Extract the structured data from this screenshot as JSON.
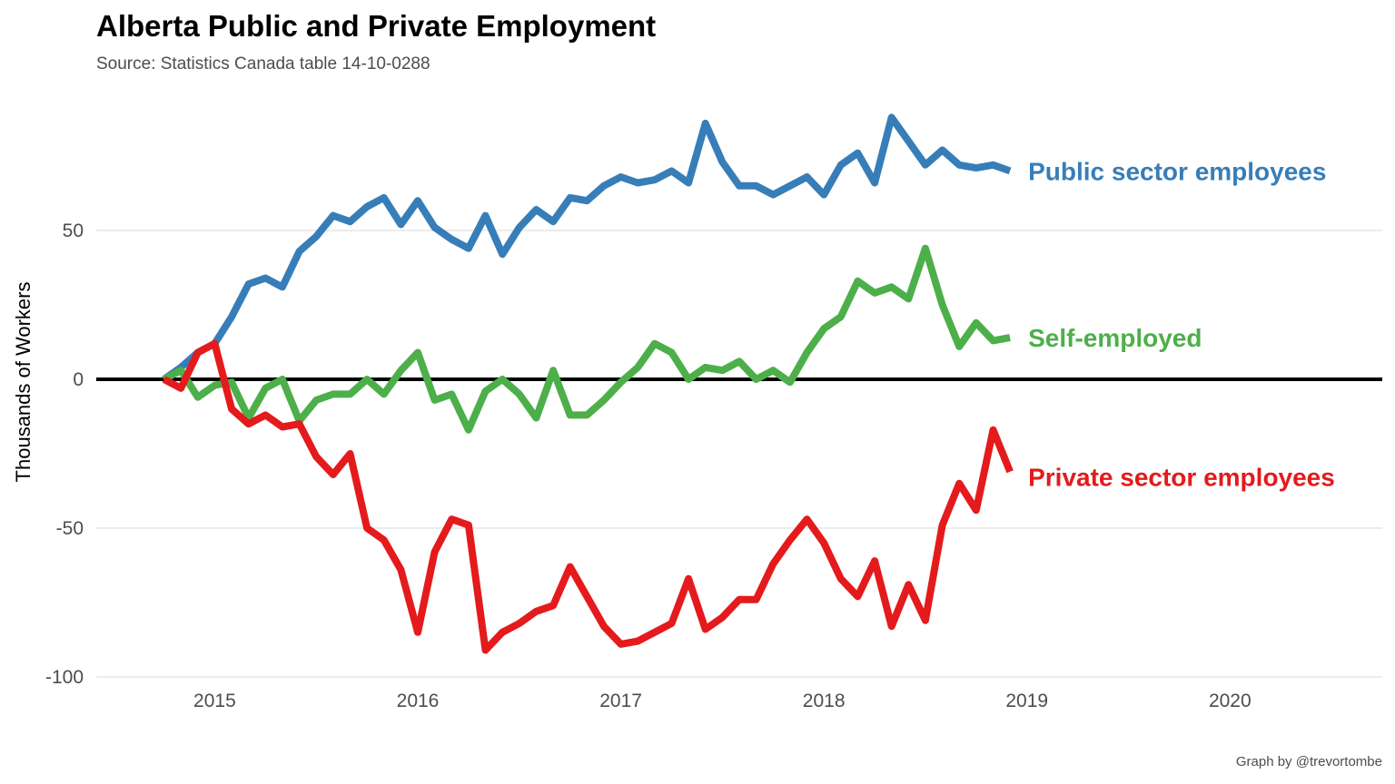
{
  "chart_data": {
    "type": "line",
    "title": "Alberta Public and Private Employment",
    "subtitle": "Source: Statistics Canada table 14-10-0288",
    "caption": "Graph by @trevortombe",
    "xlabel": "",
    "ylabel": "Thousands of Workers",
    "xlim": [
      "2014-06",
      "2020-10"
    ],
    "ylim": [
      -100,
      90
    ],
    "x_ticks": [
      "2015",
      "2016",
      "2017",
      "2018",
      "2019",
      "2020"
    ],
    "y_ticks": [
      50,
      0,
      -50,
      -100
    ],
    "y_tick_labels": [
      "50",
      "0",
      "-50",
      "-100"
    ],
    "grid": true,
    "legend": "direct labels at line ends",
    "x": [
      "2014-10",
      "2014-11",
      "2014-12",
      "2015-01",
      "2015-02",
      "2015-03",
      "2015-04",
      "2015-05",
      "2015-06",
      "2015-07",
      "2015-08",
      "2015-09",
      "2015-10",
      "2015-11",
      "2015-12",
      "2016-01",
      "2016-02",
      "2016-03",
      "2016-04",
      "2016-05",
      "2016-06",
      "2016-07",
      "2016-08",
      "2016-09",
      "2016-10",
      "2016-11",
      "2016-12",
      "2017-01",
      "2017-02",
      "2017-03",
      "2017-04",
      "2017-05",
      "2017-06",
      "2017-07",
      "2017-08",
      "2017-09",
      "2017-10",
      "2017-11",
      "2017-12",
      "2018-01",
      "2018-02",
      "2018-03",
      "2018-04",
      "2018-05",
      "2018-06",
      "2018-07",
      "2018-08",
      "2018-09",
      "2018-10",
      "2018-11",
      "2018-12"
    ],
    "series": [
      {
        "name": "Public sector employees",
        "color": "#377eb8",
        "values": [
          0,
          4,
          9,
          12,
          21,
          32,
          34,
          31,
          43,
          48,
          55,
          53,
          58,
          61,
          52,
          60,
          51,
          47,
          44,
          55,
          42,
          51,
          57,
          53,
          61,
          60,
          65,
          68,
          66,
          67,
          70,
          66,
          86,
          73,
          65,
          65,
          62,
          65,
          68,
          62,
          72,
          76,
          66,
          88,
          80,
          72,
          77,
          72,
          71,
          72,
          70
        ]
      },
      {
        "name": "Self-employed",
        "color": "#4daf4a",
        "values": [
          0,
          3,
          -6,
          -2,
          -1,
          -13,
          -3,
          0,
          -14,
          -7,
          -5,
          -5,
          0,
          -5,
          3,
          9,
          -7,
          -5,
          -17,
          -4,
          0,
          -5,
          -13,
          3,
          -12,
          -12,
          -7,
          -1,
          4,
          12,
          9,
          0,
          4,
          3,
          6,
          0,
          3,
          -1,
          9,
          17,
          21,
          33,
          29,
          31,
          27,
          44,
          25,
          11,
          19,
          13,
          14
        ]
      },
      {
        "name": "Private sector employees",
        "color": "#e41a1c",
        "values": [
          0,
          -3,
          9,
          12,
          -10,
          -15,
          -12,
          -16,
          -15,
          -26,
          -32,
          -25,
          -50,
          -54,
          -64,
          -85,
          -58,
          -47,
          -49,
          -91,
          -85,
          -82,
          -78,
          -76,
          -63,
          -73,
          -83,
          -89,
          -88,
          -85,
          -82,
          -67,
          -84,
          -80,
          -74,
          -74,
          -62,
          -54,
          -47,
          -55,
          -67,
          -73,
          -61,
          -83,
          -69,
          -81,
          -49,
          -35,
          -44,
          -17,
          -31
        ]
      }
    ]
  }
}
